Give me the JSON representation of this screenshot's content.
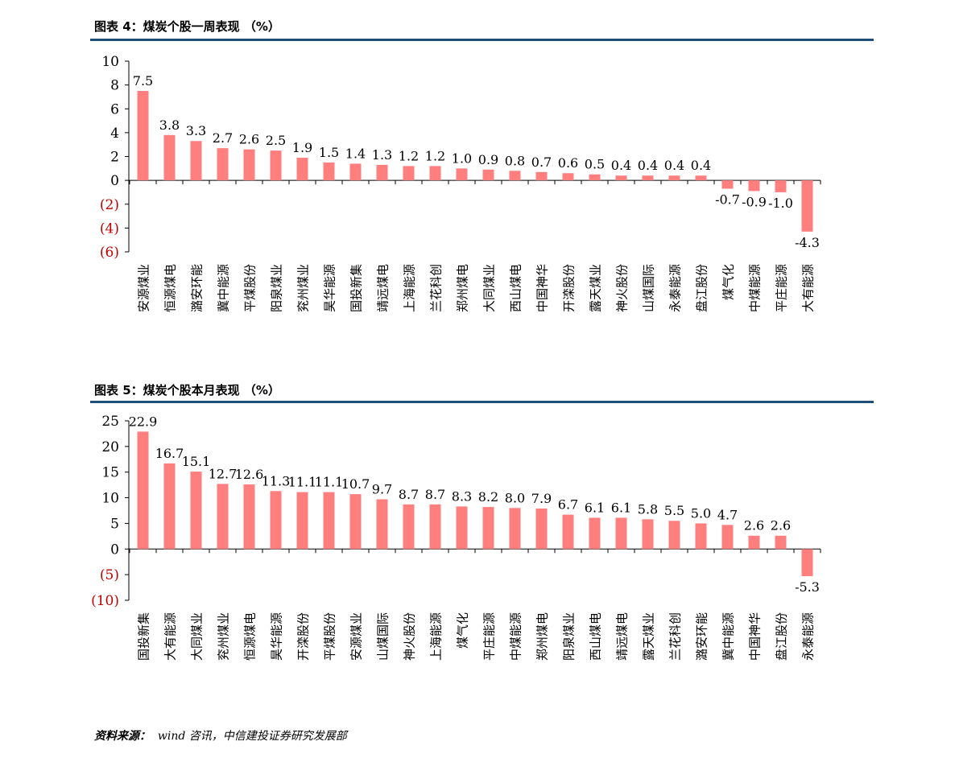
{
  "colors": {
    "bar": "#ff7f7f",
    "rule": "#1f4e79",
    "negative_tick": "#c00000"
  },
  "figures": [
    {
      "title": "图表 4：煤炭个股一周表现 （%）"
    },
    {
      "title": "图表 5：煤炭个股本月表现 （%）"
    }
  ],
  "source": {
    "label": "资料来源：",
    "text": "wind 咨讯，中信建投证券研究发展部"
  },
  "chart_data": [
    {
      "type": "bar",
      "title": "图表 4：煤炭个股一周表现 （%）",
      "ylim": [
        -6,
        10
      ],
      "yticks": [
        10,
        8,
        6,
        4,
        2,
        0,
        -2,
        -4,
        -6
      ],
      "ytick_labels": [
        "10",
        "8",
        "6",
        "4",
        "2",
        "0",
        "(2)",
        "(4)",
        "(6)"
      ],
      "categories": [
        "安源煤业",
        "恒源煤电",
        "潞安环能",
        "冀中能源",
        "平煤股份",
        "阳泉煤业",
        "兖州煤业",
        "昊华能源",
        "国投新集",
        "靖远煤电",
        "上海能源",
        "兰花科创",
        "郑州煤电",
        "大同煤业",
        "西山煤电",
        "中国神华",
        "开滦股份",
        "露天煤业",
        "神火股份",
        "山煤国际",
        "永泰能源",
        "盘江股份",
        "煤气化",
        "中煤能源",
        "平庄能源",
        "大有能源"
      ],
      "values": [
        7.5,
        3.8,
        3.3,
        2.7,
        2.6,
        2.5,
        1.9,
        1.5,
        1.4,
        1.3,
        1.2,
        1.2,
        1.0,
        0.9,
        0.8,
        0.7,
        0.6,
        0.5,
        0.4,
        0.4,
        0.4,
        0.4,
        -0.7,
        -0.9,
        -1.0,
        -4.3
      ],
      "value_labels": [
        "7.5",
        "3.8",
        "3.3",
        "2.7",
        "2.6",
        "2.5",
        "1.9",
        "1.5",
        "1.4",
        "1.3",
        "1.2",
        "1.2",
        "1.0",
        "0.9",
        "0.8",
        "0.7",
        "0.6",
        "0.5",
        "0.4",
        "0.4",
        "0.4",
        "0.4",
        "-0.7",
        "-0.9",
        "-1.0",
        "-4.3"
      ]
    },
    {
      "type": "bar",
      "title": "图表 5：煤炭个股本月表现 （%）",
      "ylim": [
        -10,
        25
      ],
      "yticks": [
        25,
        20,
        15,
        10,
        5,
        0,
        -5,
        -10
      ],
      "ytick_labels": [
        "25",
        "20",
        "15",
        "10",
        "5",
        "0",
        "(5)",
        "(10)"
      ],
      "categories": [
        "国投新集",
        "大有能源",
        "大同煤业",
        "兖州煤业",
        "恒源煤电",
        "昊华能源",
        "开滦股份",
        "平煤股份",
        "安源煤业",
        "山煤国际",
        "神火股份",
        "上海能源",
        "煤气化",
        "平庄能源",
        "中煤能源",
        "郑州煤电",
        "阳泉煤业",
        "西山煤电",
        "靖远煤电",
        "露天煤业",
        "兰花科创",
        "潞安环能",
        "冀中能源",
        "中国神华",
        "盘江股份",
        "永泰能源"
      ],
      "values": [
        22.9,
        16.7,
        15.1,
        12.7,
        12.6,
        11.3,
        11.1,
        11.1,
        10.7,
        9.7,
        8.7,
        8.7,
        8.3,
        8.2,
        8.0,
        7.9,
        6.7,
        6.1,
        6.1,
        5.8,
        5.5,
        5.0,
        4.7,
        2.6,
        2.6,
        -5.3
      ],
      "value_labels": [
        "22.9",
        "16.7",
        "15.1",
        "12.7",
        "12.6",
        "11.3",
        "11.1",
        "11.1",
        "10.7",
        "9.7",
        "8.7",
        "8.7",
        "8.3",
        "8.2",
        "8.0",
        "7.9",
        "6.7",
        "6.1",
        "6.1",
        "5.8",
        "5.5",
        "5.0",
        "4.7",
        "2.6",
        "2.6",
        "-5.3"
      ]
    }
  ]
}
